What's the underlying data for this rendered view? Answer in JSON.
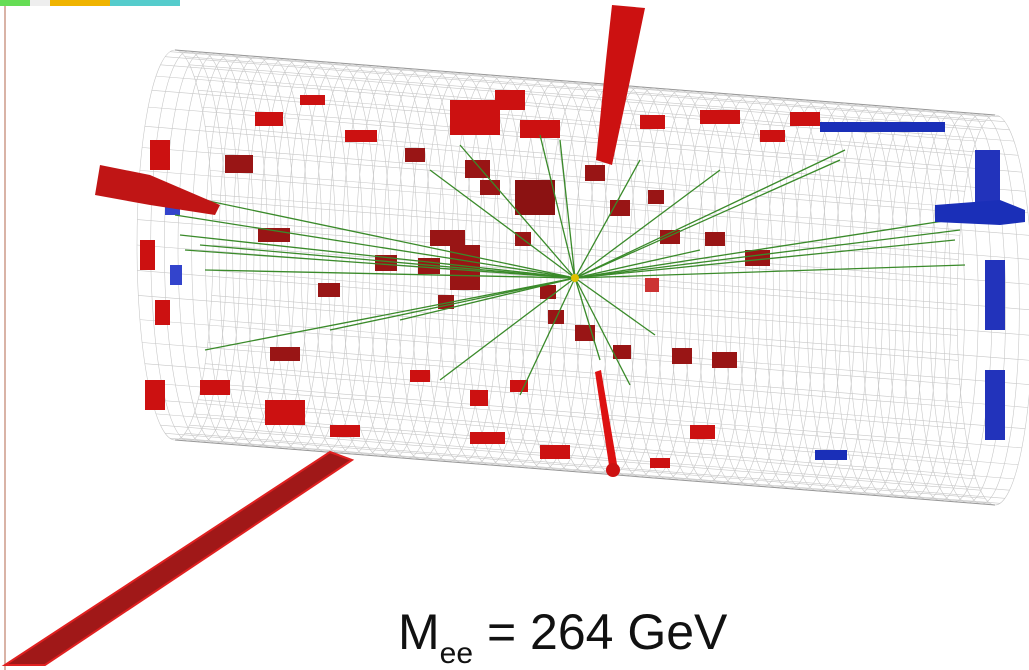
{
  "label": {
    "symbol": "M",
    "subscript": "ee",
    "text": "= 264 GeV"
  }
}
